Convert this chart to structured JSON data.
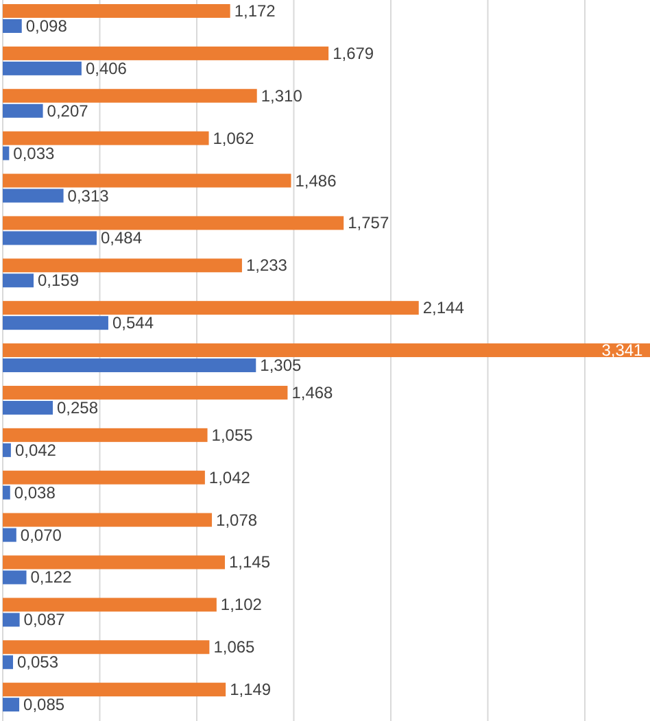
{
  "chart_data": {
    "type": "bar",
    "orientation": "horizontal",
    "categories": [
      null,
      null,
      null,
      null,
      null,
      null,
      null,
      null,
      null,
      null,
      null,
      null,
      null,
      null,
      null,
      null,
      null
    ],
    "series": [
      {
        "color": "#4472c4",
        "values": [
          0.098,
          0.406,
          0.207,
          0.033,
          0.313,
          0.484,
          0.159,
          0.544,
          1.305,
          0.258,
          0.042,
          0.038,
          0.07,
          0.122,
          0.087,
          0.053,
          0.085
        ],
        "value_labels": [
          "0,098",
          "0,406",
          "0,207",
          "0,033",
          "0,313",
          "0,484",
          "0,159",
          "0,544",
          "1,305",
          "0,258",
          "0,042",
          "0,038",
          "0,070",
          "0,122",
          "0,087",
          "0,053",
          "0,085"
        ]
      },
      {
        "color": "#ed7d31",
        "values": [
          1.172,
          1.679,
          1.31,
          1.062,
          1.486,
          1.757,
          1.233,
          2.144,
          3.341,
          1.468,
          1.055,
          1.042,
          1.078,
          1.145,
          1.102,
          1.065,
          1.149
        ],
        "value_labels": [
          "1,172",
          "1,679",
          "1,310",
          "1,062",
          "1,486",
          "1,757",
          "1,233",
          "2,144",
          "3,341",
          "1,468",
          "1,055",
          "1,042",
          "1,078",
          "1,145",
          "1,102",
          "1,065",
          "1,149"
        ]
      }
    ],
    "xlim": [
      0,
      3.35
    ],
    "xticks": [
      {
        "value": 0,
        "label": null
      },
      {
        "value": 0.5,
        "label": null
      },
      {
        "value": 1,
        "label": null
      },
      {
        "value": 1.5,
        "label": null
      },
      {
        "value": 2,
        "label": null
      },
      {
        "value": 2.5,
        "label": null
      },
      {
        "value": 3,
        "label": null
      }
    ],
    "grid": "x"
  }
}
